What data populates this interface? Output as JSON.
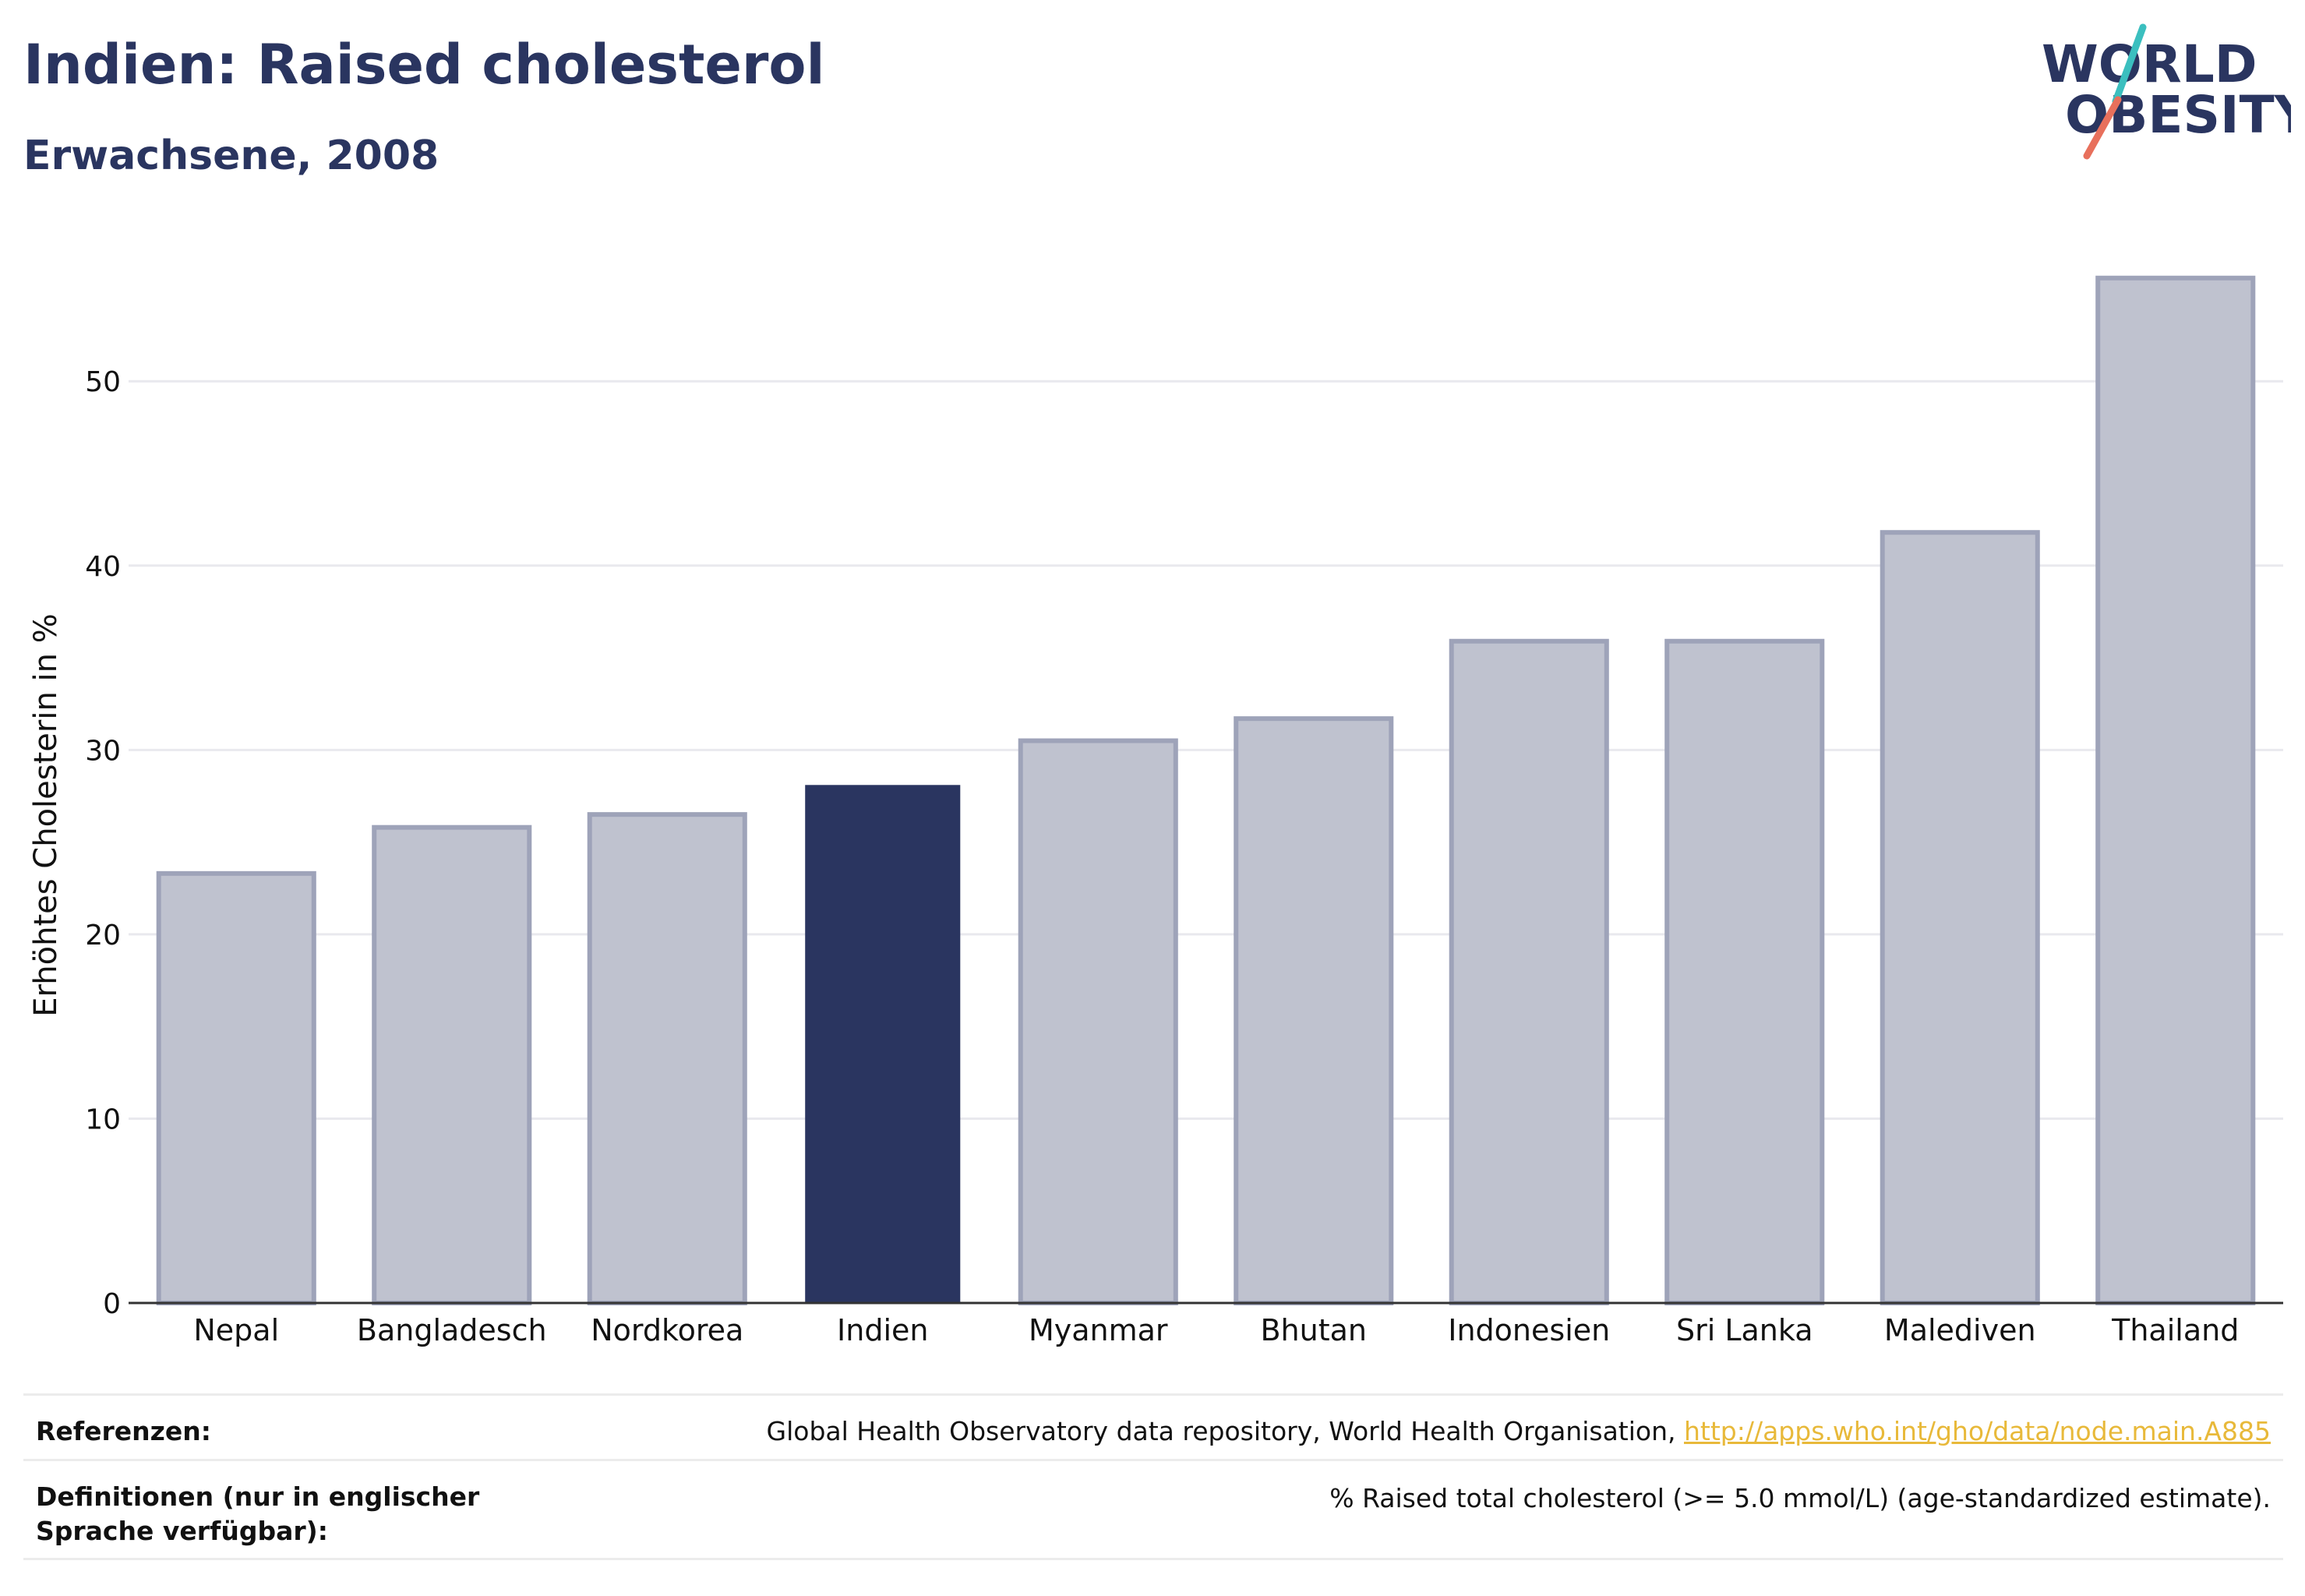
{
  "header": {
    "title": "Indien: Raised cholesterol",
    "subtitle": "Erwachsene, 2008"
  },
  "logo": {
    "line1": "WORLD",
    "line2": "OBESITY"
  },
  "chart_data": {
    "type": "bar",
    "categories": [
      "Nepal",
      "Bangladesch",
      "Nordkorea",
      "Indien",
      "Myanmar",
      "Bhutan",
      "Indonesien",
      "Sri Lanka",
      "Malediven",
      "Thailand"
    ],
    "values": [
      23.3,
      25.8,
      26.5,
      28.1,
      30.5,
      31.7,
      35.9,
      35.9,
      41.8,
      55.6
    ],
    "highlight": "Indien",
    "ylabel": "Erhöhtes Cholesterin in %",
    "yticks": [
      0,
      10,
      20,
      30,
      40,
      50
    ],
    "ylim": [
      0,
      58
    ],
    "grid": true,
    "colors": {
      "bar": "#bfc2cf",
      "bar_border": "#9ea3b9",
      "highlight": "#2a3560"
    }
  },
  "footer": {
    "references_label": "Referenzen:",
    "references_text": "Global Health Observatory data repository, World Health Organisation, ",
    "references_link": "http://apps.who.int/gho/data/node.main.A885",
    "definitions_label": "Definitionen (nur in englischer Sprache verfügbar):",
    "definitions_text": "% Raised total cholesterol (>= 5.0 mmol/L) (age-standardized estimate)."
  }
}
